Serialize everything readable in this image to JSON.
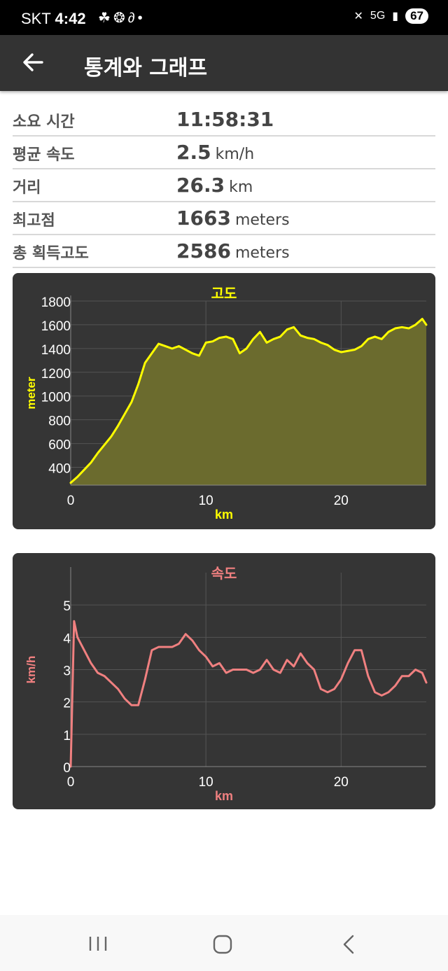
{
  "status_bar": {
    "carrier": "SKT",
    "time": "4:42",
    "network": "5G",
    "battery": "67"
  },
  "app_bar": {
    "title": "통계와 그래프"
  },
  "stats": [
    {
      "label": "소요 시간",
      "value": "11:58:31",
      "unit": ""
    },
    {
      "label": "평균 속도",
      "value": "2.5",
      "unit": "km/h"
    },
    {
      "label": "거리",
      "value": "26.3",
      "unit": "km"
    },
    {
      "label": "최고점",
      "value": "1663",
      "unit": "meters"
    },
    {
      "label": "총 획득고도",
      "value": "2586",
      "unit": "meters"
    }
  ],
  "chart_data": [
    {
      "type": "area",
      "title": "고도",
      "xlabel": "km",
      "ylabel": "meter",
      "xlim": [
        0,
        26.3
      ],
      "ylim": [
        250,
        1800
      ],
      "xticks": [
        0,
        10,
        20
      ],
      "yticks": [
        400,
        600,
        800,
        1000,
        1200,
        1400,
        1600,
        1800
      ],
      "grid": true,
      "colors": {
        "line": "#ffff00",
        "fill": "#6b6b2e",
        "title": "#ffff00",
        "axis_title": "#ffff00"
      },
      "x": [
        0,
        0.5,
        1,
        1.5,
        2,
        2.5,
        3,
        3.5,
        4,
        4.5,
        5,
        5.5,
        6,
        6.5,
        7,
        7.5,
        8,
        8.5,
        9,
        9.5,
        10,
        10.5,
        11,
        11.5,
        12,
        12.5,
        13,
        13.5,
        14,
        14.5,
        15,
        15.5,
        16,
        16.5,
        17,
        17.5,
        18,
        18.5,
        19,
        19.5,
        20,
        20.5,
        21,
        21.5,
        22,
        22.5,
        23,
        23.5,
        24,
        24.5,
        25,
        25.5,
        26,
        26.3
      ],
      "y": [
        270,
        320,
        380,
        440,
        520,
        590,
        660,
        750,
        850,
        950,
        1100,
        1280,
        1360,
        1440,
        1420,
        1400,
        1420,
        1390,
        1360,
        1340,
        1450,
        1460,
        1490,
        1500,
        1480,
        1360,
        1400,
        1480,
        1540,
        1450,
        1480,
        1500,
        1560,
        1580,
        1510,
        1490,
        1480,
        1450,
        1430,
        1390,
        1370,
        1380,
        1390,
        1420,
        1480,
        1500,
        1480,
        1540,
        1570,
        1580,
        1570,
        1600,
        1650,
        1600
      ]
    },
    {
      "type": "line",
      "title": "속도",
      "xlabel": "km",
      "ylabel": "km/h",
      "xlim": [
        0,
        26.3
      ],
      "ylim": [
        0,
        6
      ],
      "xticks": [
        0,
        10,
        20
      ],
      "yticks": [
        0,
        1,
        2,
        3,
        4,
        5
      ],
      "grid": true,
      "colors": {
        "line": "#f08080",
        "title": "#f08080",
        "axis_title": "#f08080"
      },
      "x": [
        0,
        0.25,
        0.5,
        1,
        1.5,
        2,
        2.5,
        3,
        3.5,
        4,
        4.5,
        5,
        5.5,
        6,
        6.5,
        7,
        7.5,
        8,
        8.5,
        9,
        9.5,
        10,
        10.5,
        11,
        11.5,
        12,
        12.5,
        13,
        13.5,
        14,
        14.5,
        15,
        15.5,
        16,
        16.5,
        17,
        17.5,
        18,
        18.5,
        19,
        19.5,
        20,
        20.5,
        21,
        21.5,
        22,
        22.5,
        23,
        23.5,
        24,
        24.5,
        25,
        25.5,
        26,
        26.3
      ],
      "y": [
        0,
        4.5,
        4.0,
        3.6,
        3.2,
        2.9,
        2.8,
        2.6,
        2.4,
        2.1,
        1.9,
        1.9,
        2.7,
        3.6,
        3.7,
        3.7,
        3.7,
        3.8,
        4.1,
        3.9,
        3.6,
        3.4,
        3.1,
        3.2,
        2.9,
        3.0,
        3.0,
        3.0,
        2.9,
        3.0,
        3.3,
        3.0,
        2.9,
        3.3,
        3.1,
        3.5,
        3.2,
        3.0,
        2.4,
        2.3,
        2.4,
        2.7,
        3.2,
        3.6,
        3.6,
        2.8,
        2.3,
        2.2,
        2.3,
        2.5,
        2.8,
        2.8,
        3.0,
        2.9,
        2.6
      ]
    }
  ]
}
